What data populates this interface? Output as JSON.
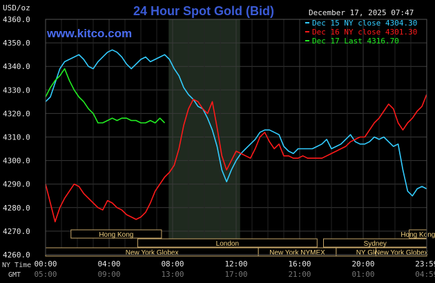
{
  "header": {
    "currency_label": "USD/oz",
    "title": "24 Hour Spot Gold (Bid)",
    "watermark": "www.kitco.com",
    "timestamp": "December 17, 2025 07:47"
  },
  "bottom_labels": {
    "ny_time": "NY Time",
    "gmt": "GMT"
  },
  "chart_data": {
    "type": "line",
    "title": "24 Hour Spot Gold (Bid)",
    "ylabel": "USD/oz",
    "ylim": [
      4260,
      4360
    ],
    "y_ticks": [
      "4360.0",
      "4350.0",
      "4340.0",
      "4330.0",
      "4320.0",
      "4310.0",
      "4300.0",
      "4290.0",
      "4280.0",
      "4270.0",
      "4260.0"
    ],
    "xlim": [
      0,
      24
    ],
    "x_ticks_ny": [
      "00:00",
      "04:00",
      "08:00",
      "12:00",
      "16:00",
      "20:00",
      "23:59"
    ],
    "x_ticks_gmt": [
      "05:00",
      "09:00",
      "13:00",
      "17:00",
      "21:00",
      "01:00",
      "04:59"
    ],
    "grid": true,
    "legend_position": "top-right",
    "highlight_band": [
      7.75,
      12.25
    ],
    "sessions": [
      {
        "label": "Hong Kong",
        "start": 1.6,
        "end": 7.3,
        "row": 0
      },
      {
        "label": "London",
        "start": 5.8,
        "end": 17.1,
        "row": 1
      },
      {
        "label": "New York Globex",
        "start": 0.0,
        "end": 13.4,
        "row": 2
      },
      {
        "label": "New York NYMEX",
        "start": 13.4,
        "end": 18.3,
        "row": 2
      },
      {
        "label": "NY Globex",
        "start": 18.3,
        "end": 22.9,
        "row": 2
      },
      {
        "label": "Hong Kong",
        "start": 22.9,
        "end": 24.0,
        "row": 0
      },
      {
        "label": "Sydney",
        "start": 17.5,
        "end": 24.0,
        "row": 1
      },
      {
        "label": "New York Globex",
        "start": 20.8,
        "end": 24.0,
        "row": 2
      }
    ],
    "series": [
      {
        "name": "Dec 15 NY close 4304.30",
        "color": "#33ccff",
        "x": [
          0.0,
          0.3,
          0.6,
          0.9,
          1.2,
          1.5,
          1.8,
          2.1,
          2.4,
          2.7,
          3.0,
          3.3,
          3.6,
          3.9,
          4.2,
          4.5,
          4.8,
          5.1,
          5.4,
          5.7,
          6.0,
          6.3,
          6.6,
          6.9,
          7.2,
          7.5,
          7.8,
          8.1,
          8.4,
          8.7,
          9.0,
          9.3,
          9.6,
          9.9,
          10.2,
          10.5,
          10.8,
          11.1,
          11.4,
          11.7,
          12.0,
          12.3,
          12.6,
          12.9,
          13.2,
          13.5,
          13.8,
          14.1,
          14.4,
          14.7,
          15.0,
          15.3,
          15.6,
          15.9,
          16.2,
          16.5,
          16.8,
          17.1,
          17.4,
          17.7,
          18.0,
          18.3,
          18.6,
          18.9,
          19.2,
          19.5,
          19.8,
          20.1,
          20.4,
          20.7,
          21.0,
          21.3,
          21.6,
          21.9,
          22.2,
          22.5,
          22.8,
          23.1,
          23.4,
          23.7,
          23.99
        ],
        "y": [
          4325,
          4327,
          4333,
          4339,
          4342,
          4343,
          4344,
          4345,
          4343,
          4340,
          4339,
          4342,
          4344,
          4346,
          4347,
          4346,
          4344,
          4341,
          4339,
          4341,
          4343,
          4344,
          4342,
          4343,
          4344,
          4345,
          4343,
          4339,
          4336,
          4331,
          4328,
          4326,
          4323,
          4322,
          4318,
          4313,
          4306,
          4296,
          4291,
          4296,
          4300,
          4303,
          4305,
          4307,
          4309,
          4312,
          4313,
          4313,
          4312,
          4311,
          4306,
          4304,
          4303,
          4305,
          4305,
          4305,
          4305,
          4306,
          4307,
          4309,
          4305,
          4306,
          4307,
          4309,
          4311,
          4308,
          4307,
          4307,
          4308,
          4310,
          4309,
          4310,
          4308,
          4306,
          4307,
          4296,
          4287,
          4285,
          4288,
          4289,
          4288
        ]
      },
      {
        "name": "Dec 16 NY close 4301.30",
        "color": "#ff1a1a",
        "x": [
          0.0,
          0.3,
          0.6,
          0.9,
          1.2,
          1.5,
          1.8,
          2.1,
          2.4,
          2.7,
          3.0,
          3.3,
          3.6,
          3.9,
          4.2,
          4.5,
          4.8,
          5.1,
          5.4,
          5.7,
          6.0,
          6.3,
          6.6,
          6.9,
          7.2,
          7.5,
          7.8,
          8.1,
          8.4,
          8.7,
          9.0,
          9.3,
          9.6,
          9.9,
          10.2,
          10.5,
          10.8,
          11.1,
          11.4,
          11.7,
          12.0,
          12.3,
          12.6,
          12.9,
          13.2,
          13.5,
          13.8,
          14.1,
          14.4,
          14.7,
          15.0,
          15.3,
          15.6,
          15.9,
          16.2,
          16.5,
          16.8,
          17.1,
          17.4,
          17.7,
          18.0,
          18.3,
          18.6,
          18.9,
          19.2,
          19.5,
          19.8,
          20.1,
          20.4,
          20.7,
          21.0,
          21.3,
          21.6,
          21.9,
          22.2,
          22.5,
          22.8,
          23.1,
          23.4,
          23.7,
          23.99
        ],
        "y": [
          4290,
          4282,
          4274,
          4280,
          4284,
          4287,
          4290,
          4289,
          4286,
          4284,
          4282,
          4280,
          4279,
          4283,
          4282,
          4280,
          4279,
          4277,
          4276,
          4275,
          4276,
          4278,
          4282,
          4287,
          4290,
          4293,
          4295,
          4298,
          4305,
          4315,
          4322,
          4326,
          4325,
          4322,
          4320,
          4325,
          4314,
          4302,
          4296,
          4300,
          4304,
          4303,
          4302,
          4301,
          4305,
          4310,
          4312,
          4308,
          4305,
          4307,
          4302,
          4302,
          4301,
          4301,
          4302,
          4301,
          4301,
          4301,
          4301,
          4302,
          4303,
          4304,
          4305,
          4306,
          4308,
          4309,
          4310,
          4310,
          4313,
          4316,
          4318,
          4321,
          4324,
          4322,
          4316,
          4313,
          4316,
          4318,
          4321,
          4323,
          4328
        ]
      },
      {
        "name": "Dec 17 Last 4316.70",
        "color": "#22ee22",
        "x": [
          0.0,
          0.3,
          0.6,
          0.9,
          1.2,
          1.5,
          1.8,
          2.1,
          2.4,
          2.7,
          3.0,
          3.3,
          3.6,
          3.9,
          4.2,
          4.5,
          4.8,
          5.1,
          5.4,
          5.7,
          6.0,
          6.3,
          6.6,
          6.9,
          7.2,
          7.5
        ],
        "y": [
          4327,
          4331,
          4334,
          4336,
          4339,
          4334,
          4330,
          4327,
          4325,
          4322,
          4320,
          4316,
          4316,
          4317,
          4318,
          4317,
          4318,
          4318,
          4317,
          4317,
          4316,
          4316,
          4317,
          4316,
          4318,
          4316
        ]
      }
    ]
  }
}
